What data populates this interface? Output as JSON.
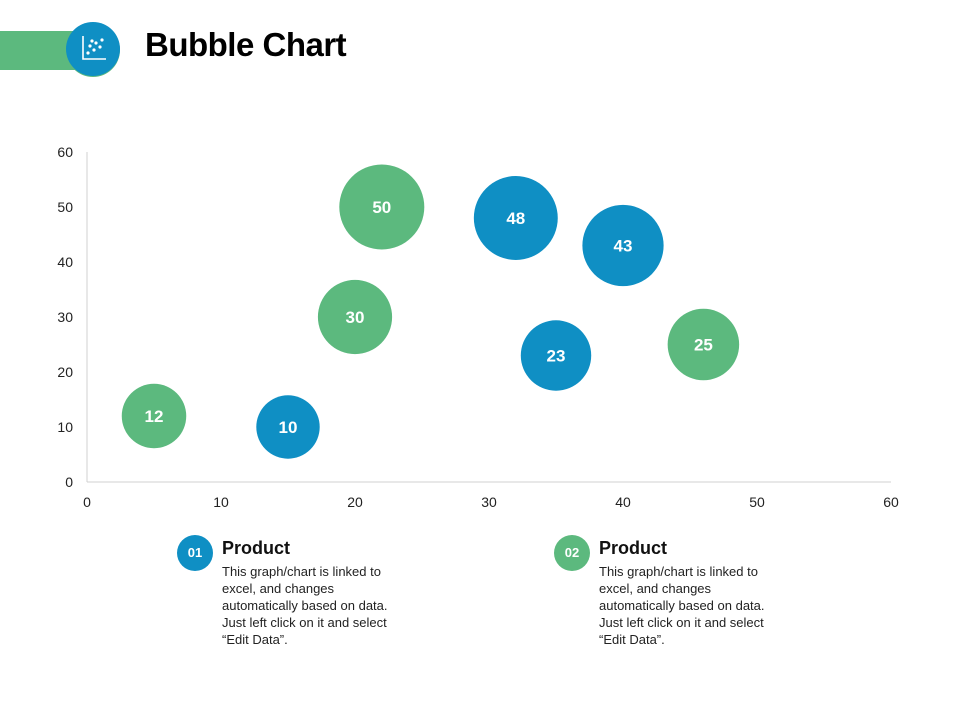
{
  "header": {
    "title": "Bubble Chart",
    "logo_icon": "scatter-chart-icon",
    "accent_green": "#5cb97e",
    "accent_blue": "#0f8fc4"
  },
  "chart_data": {
    "type": "scatter",
    "title": "Bubble Chart",
    "xlim": [
      0,
      60
    ],
    "ylim": [
      0,
      60
    ],
    "x_ticks": [
      0,
      10,
      20,
      30,
      40,
      50,
      60
    ],
    "y_ticks": [
      0,
      10,
      20,
      30,
      40,
      50,
      60
    ],
    "grid": false,
    "bubbles": [
      {
        "x": 5,
        "y": 12,
        "size": 12,
        "label": "12",
        "color": "#5cb97e"
      },
      {
        "x": 15,
        "y": 10,
        "size": 10,
        "label": "10",
        "color": "#0f8fc4"
      },
      {
        "x": 20,
        "y": 30,
        "size": 30,
        "label": "30",
        "color": "#5cb97e"
      },
      {
        "x": 22,
        "y": 50,
        "size": 50,
        "label": "50",
        "color": "#5cb97e"
      },
      {
        "x": 32,
        "y": 48,
        "size": 48,
        "label": "48",
        "color": "#0f8fc4"
      },
      {
        "x": 35,
        "y": 23,
        "size": 23,
        "label": "23",
        "color": "#0f8fc4"
      },
      {
        "x": 40,
        "y": 43,
        "size": 43,
        "label": "43",
        "color": "#0f8fc4"
      },
      {
        "x": 46,
        "y": 25,
        "size": 25,
        "label": "25",
        "color": "#5cb97e"
      }
    ]
  },
  "legend": [
    {
      "number": "01",
      "title": "Product",
      "description": "This graph/chart is linked to excel, and changes automatically based on data. Just left click on it and select “Edit Data”.",
      "color": "#0f8fc4"
    },
    {
      "number": "02",
      "title": "Product",
      "description": "This graph/chart is linked to excel, and changes automatically based on data. Just left click on it and select “Edit Data”.",
      "color": "#5cb97e"
    }
  ]
}
